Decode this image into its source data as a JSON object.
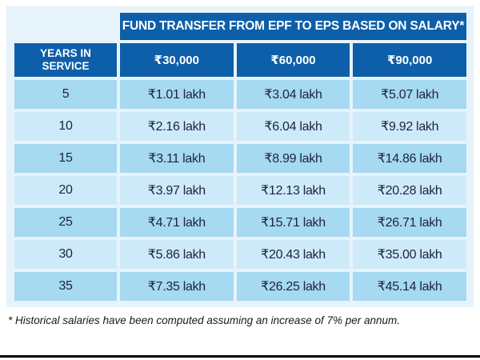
{
  "title": "FUND TRANSFER FROM EPF TO EPS BASED ON SALARY*",
  "table": {
    "corner_header": "YEARS IN SERVICE",
    "salary_headers": [
      "₹30,000",
      "₹60,000",
      "₹90,000"
    ],
    "rows": [
      {
        "years": "5",
        "values": [
          "₹1.01 lakh",
          "₹3.04 lakh",
          "₹5.07 lakh"
        ]
      },
      {
        "years": "10",
        "values": [
          "₹2.16 lakh",
          "₹6.04 lakh",
          "₹9.92 lakh"
        ]
      },
      {
        "years": "15",
        "values": [
          "₹3.11 lakh",
          "₹8.99 lakh",
          "₹14.86 lakh"
        ]
      },
      {
        "years": "20",
        "values": [
          "₹3.97 lakh",
          "₹12.13 lakh",
          "₹20.28 lakh"
        ]
      },
      {
        "years": "25",
        "values": [
          "₹4.71 lakh",
          "₹15.71 lakh",
          "₹26.71 lakh"
        ]
      },
      {
        "years": "30",
        "values": [
          "₹5.86 lakh",
          "₹20.43 lakh",
          "₹35.00 lakh"
        ]
      },
      {
        "years": "35",
        "values": [
          "₹7.35 lakh",
          "₹26.25 lakh",
          "₹45.14 lakh"
        ]
      }
    ]
  },
  "footnote": "* Historical salaries have been computed assuming an increase of 7% per annum.",
  "colors": {
    "header_blue": "#0e5fa9",
    "row_dark": "#a6d9f2",
    "row_light": "#cdeaf9",
    "panel_bg": "#e7f3fb",
    "text_dark": "#1c2340"
  },
  "chart_data": {
    "type": "table",
    "title": "FUND TRANSFER FROM EPF TO EPS BASED ON SALARY*",
    "row_header": "YEARS IN SERVICE",
    "columns": [
      "₹30,000",
      "₹60,000",
      "₹90,000"
    ],
    "units": "₹ lakh",
    "rows": [
      {
        "years_in_service": 5,
        "values_lakh": [
          1.01,
          3.04,
          5.07
        ]
      },
      {
        "years_in_service": 10,
        "values_lakh": [
          2.16,
          6.04,
          9.92
        ]
      },
      {
        "years_in_service": 15,
        "values_lakh": [
          3.11,
          8.99,
          14.86
        ]
      },
      {
        "years_in_service": 20,
        "values_lakh": [
          3.97,
          12.13,
          20.28
        ]
      },
      {
        "years_in_service": 25,
        "values_lakh": [
          4.71,
          15.71,
          26.71
        ]
      },
      {
        "years_in_service": 30,
        "values_lakh": [
          5.86,
          20.43,
          35.0
        ]
      },
      {
        "years_in_service": 35,
        "values_lakh": [
          7.35,
          26.25,
          45.14
        ]
      }
    ],
    "footnote": "* Historical salaries have been computed assuming an increase of 7% per annum."
  }
}
